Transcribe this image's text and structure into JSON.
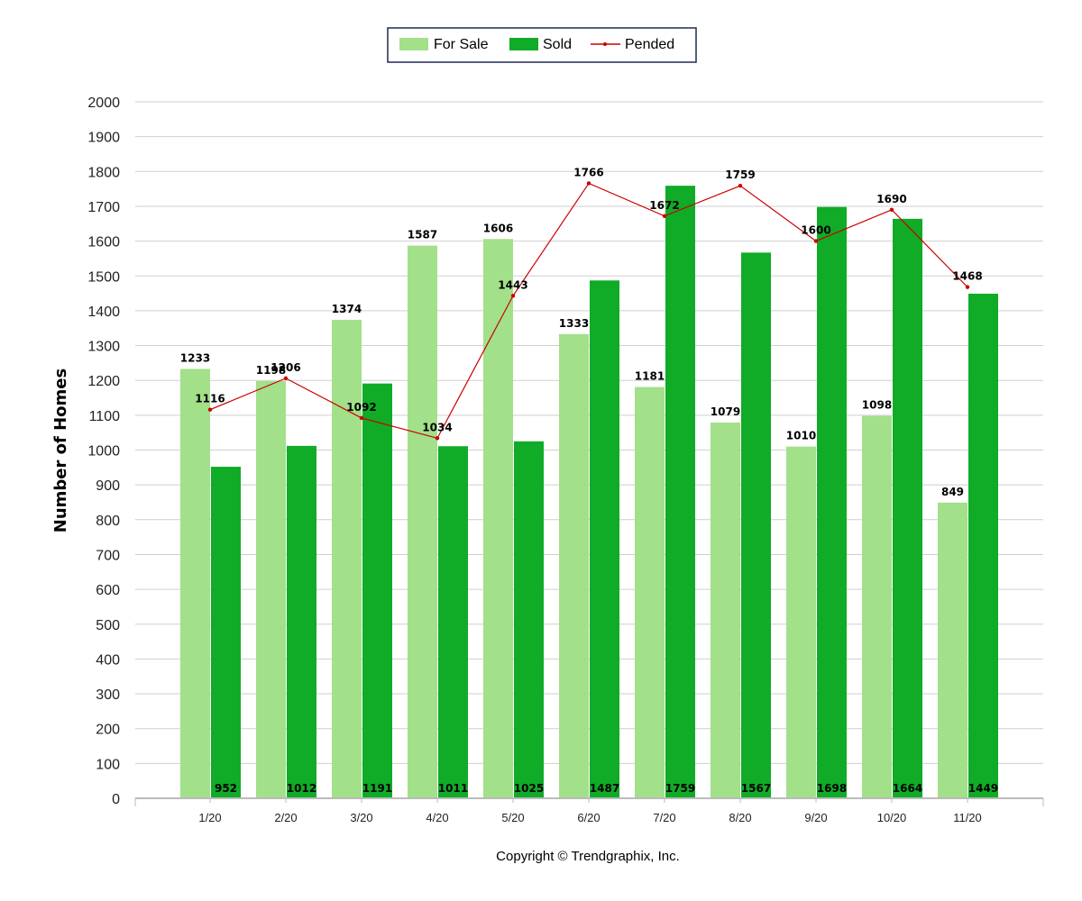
{
  "chart_data": {
    "type": "bar",
    "categories": [
      "1/20",
      "2/20",
      "3/20",
      "4/20",
      "5/20",
      "6/20",
      "7/20",
      "8/20",
      "9/20",
      "10/20",
      "11/20"
    ],
    "series": [
      {
        "name": "For Sale",
        "kind": "bar",
        "color": "#a2e08a",
        "values": [
          1233,
          1198,
          1374,
          1587,
          1606,
          1333,
          1181,
          1079,
          1010,
          1098,
          849
        ]
      },
      {
        "name": "Sold",
        "kind": "bar",
        "color": "#10ab27",
        "values": [
          952,
          1012,
          1191,
          1011,
          1025,
          1487,
          1759,
          1567,
          1698,
          1664,
          1449
        ]
      },
      {
        "name": "Pended",
        "kind": "line",
        "color": "#cc0000",
        "values": [
          1116,
          1206,
          1092,
          1034,
          1443,
          1766,
          1672,
          1759,
          1600,
          1690,
          1468
        ]
      }
    ],
    "ylabel": "Number of Homes",
    "xlabel": "",
    "ylim": [
      0,
      2000
    ],
    "ytick_step": 100,
    "grid": true,
    "legend": "top-center",
    "footer": "Copyright © Trendgraphix, Inc."
  }
}
